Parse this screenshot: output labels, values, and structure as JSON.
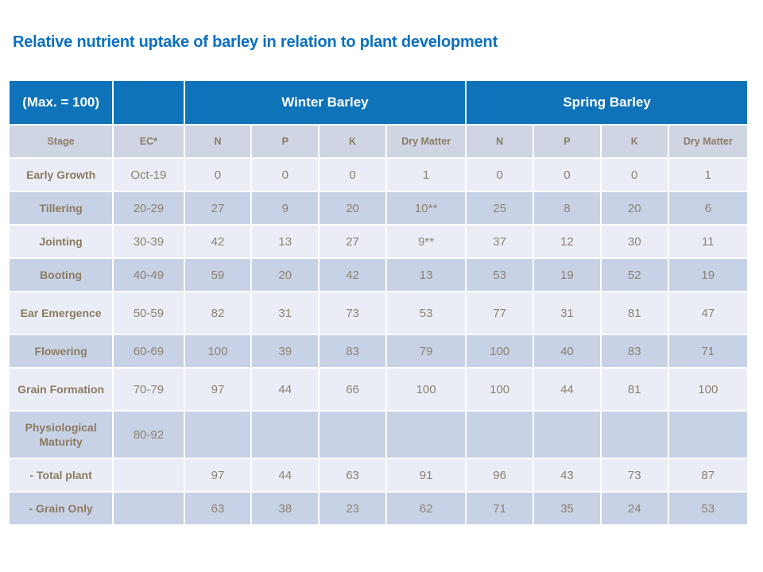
{
  "title": "Relative nutrient uptake of barley in relation to plant development",
  "table": {
    "corner_label": "(Max. = 100)",
    "group_headers": [
      "Winter Barley",
      "Spring Barley"
    ],
    "sub_headers": [
      "Stage",
      "EC*",
      "N",
      "P",
      "K",
      "Dry Matter",
      "N",
      "P",
      "K",
      "Dry Matter"
    ],
    "rows": [
      {
        "stage": "Early Growth",
        "ec": "Oct-19",
        "values": [
          "0",
          "0",
          "0",
          "1",
          "0",
          "0",
          "0",
          "1"
        ]
      },
      {
        "stage": "Tillering",
        "ec": "20-29",
        "values": [
          "27",
          "9",
          "20",
          "10**",
          "25",
          "8",
          "20",
          "6"
        ]
      },
      {
        "stage": "Jointing",
        "ec": "30-39",
        "values": [
          "42",
          "13",
          "27",
          "9**",
          "37",
          "12",
          "30",
          "11"
        ]
      },
      {
        "stage": "Booting",
        "ec": "40-49",
        "values": [
          "59",
          "20",
          "42",
          "13",
          "53",
          "19",
          "52",
          "19"
        ]
      },
      {
        "stage": "Ear Emergence",
        "ec": "50-59",
        "values": [
          "82",
          "31",
          "73",
          "53",
          "77",
          "31",
          "81",
          "47"
        ]
      },
      {
        "stage": "Flowering",
        "ec": "60-69",
        "values": [
          "100",
          "39",
          "83",
          "79",
          "100",
          "40",
          "83",
          "71"
        ]
      },
      {
        "stage": "Grain Formation",
        "ec": "70-79",
        "values": [
          "97",
          "44",
          "66",
          "100",
          "100",
          "44",
          "81",
          "100"
        ]
      },
      {
        "stage": "Physiological Maturity",
        "ec": "80-92",
        "values": [
          "",
          "",
          "",
          "",
          "",
          "",
          "",
          ""
        ]
      },
      {
        "stage": "- Total plant",
        "ec": "",
        "values": [
          "97",
          "44",
          "63",
          "91",
          "96",
          "43",
          "73",
          "87"
        ]
      },
      {
        "stage": "- Grain Only",
        "ec": "",
        "values": [
          "63",
          "38",
          "23",
          "62",
          "71",
          "35",
          "24",
          "53"
        ]
      }
    ]
  },
  "colors": {
    "title_blue": "#0b70c0",
    "header_blue": "#0e73b9",
    "subheader_bg": "#cfd5e3",
    "row_light": "#eaedf6",
    "row_dark": "#c8d2e6",
    "text_brown": "#8b7a60",
    "value_brown": "#8d8170"
  }
}
